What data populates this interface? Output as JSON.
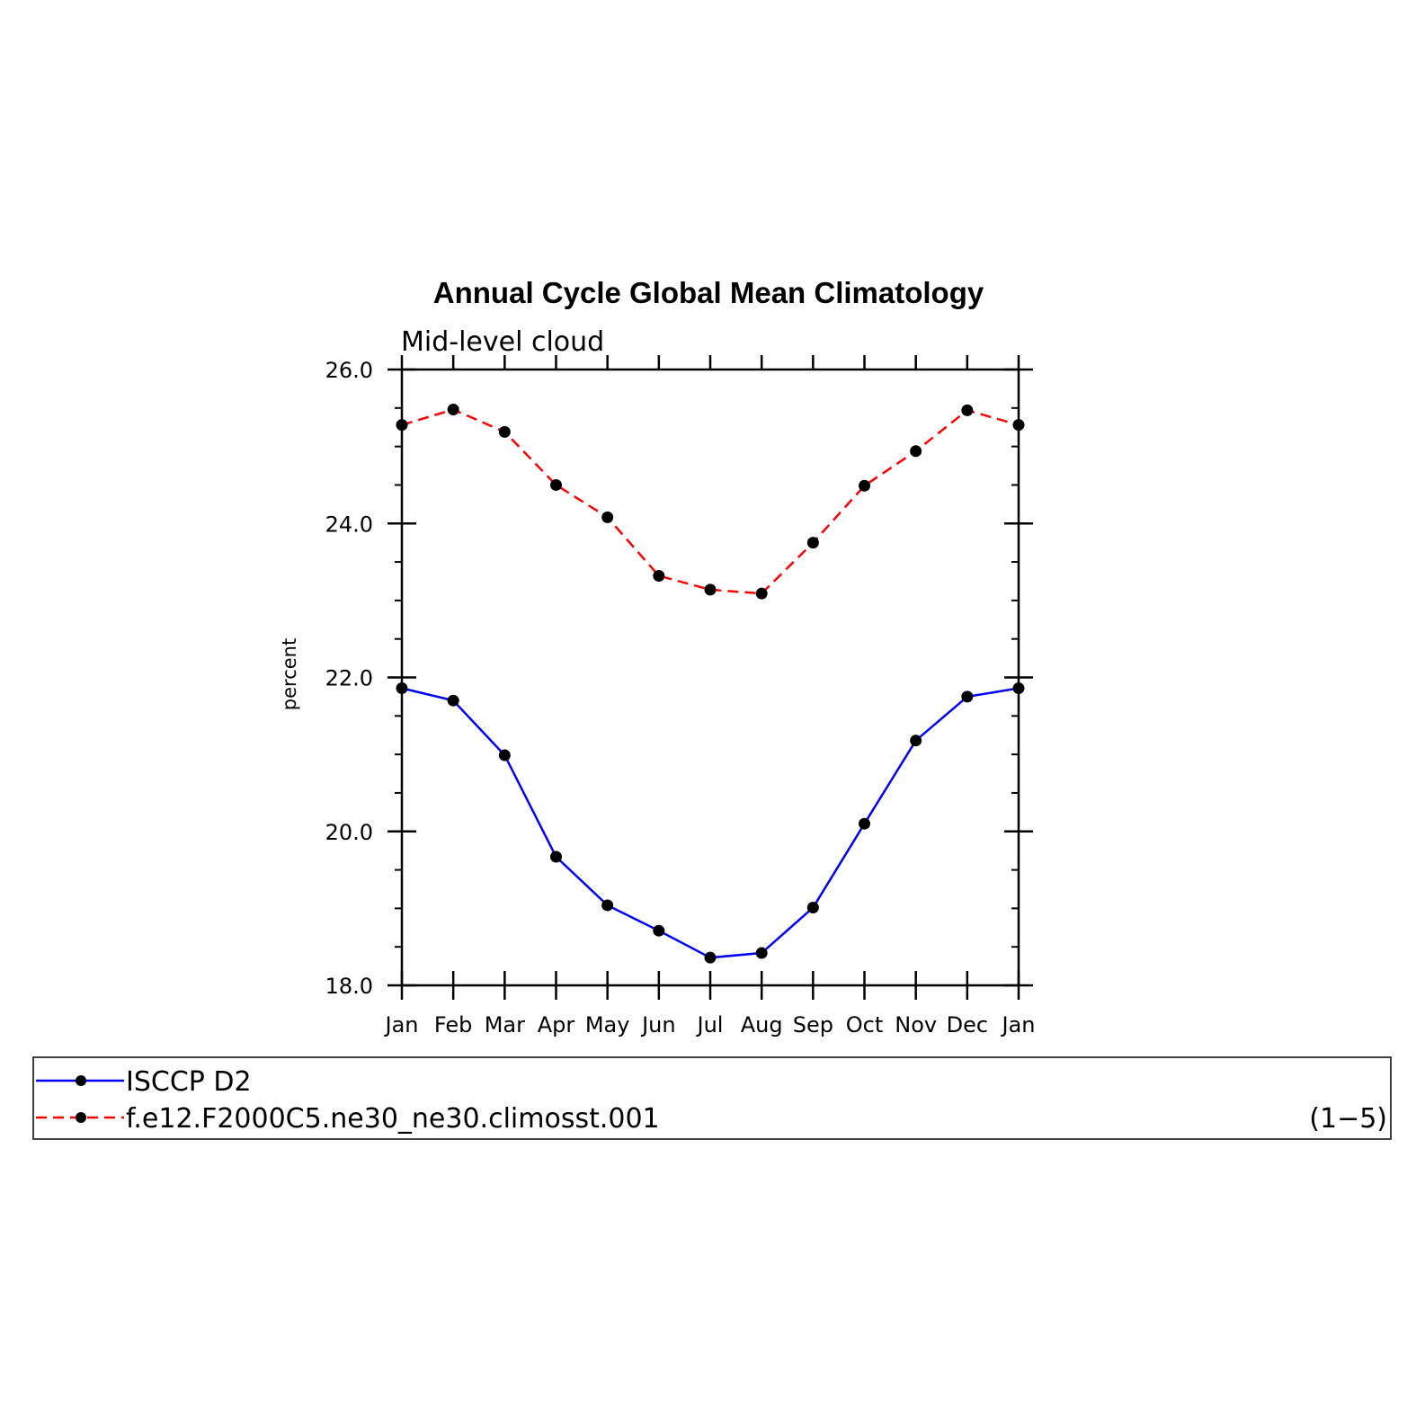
{
  "chart_data": {
    "type": "line",
    "title": "Annual Cycle Global Mean Climatology",
    "subtitle": "Mid-level cloud",
    "xlabel": "",
    "ylabel": "percent",
    "categories": [
      "Jan",
      "Feb",
      "Mar",
      "Apr",
      "May",
      "Jun",
      "Jul",
      "Aug",
      "Sep",
      "Oct",
      "Nov",
      "Dec",
      "Jan"
    ],
    "ylim": [
      18.0,
      26.0
    ],
    "yticks": [
      "18.0",
      "20.0",
      "22.0",
      "24.0",
      "26.0"
    ],
    "grid": false,
    "series": [
      {
        "name": "ISCCP D2",
        "color": "#0000ff",
        "style": "solid",
        "values": [
          21.86,
          21.7,
          20.99,
          19.67,
          19.04,
          18.71,
          18.36,
          18.42,
          19.01,
          20.1,
          21.18,
          21.75,
          21.86
        ]
      },
      {
        "name": "f.e12.F2000C5.ne30_ne30.climosst.001",
        "color": "#ff0000",
        "style": "dashed",
        "values": [
          25.28,
          25.48,
          25.19,
          24.5,
          24.08,
          23.32,
          23.14,
          23.09,
          23.75,
          24.49,
          24.94,
          25.47,
          25.28
        ]
      }
    ],
    "legend_note": "(1−5)",
    "legend_position": "bottom"
  }
}
